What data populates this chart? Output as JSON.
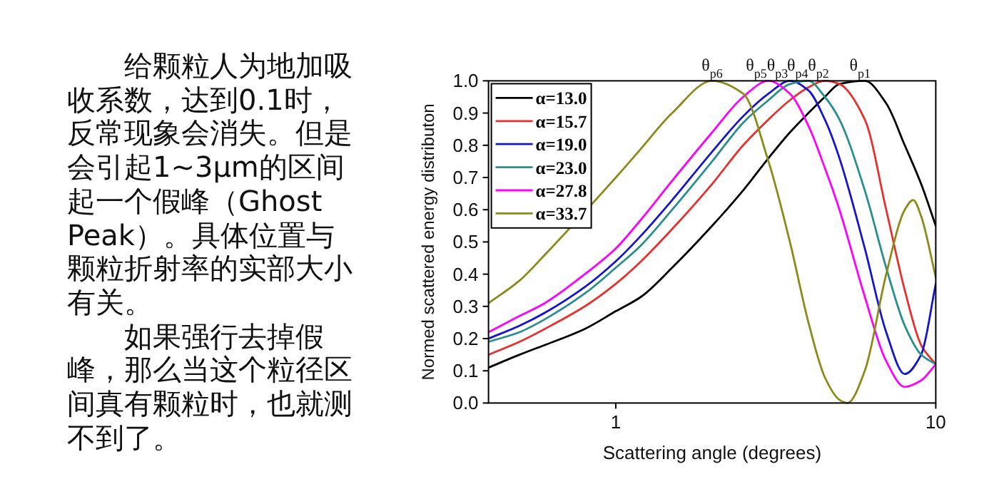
{
  "chart_data": {
    "type": "line",
    "xlabel": "Scattering angle (degrees)",
    "ylabel": "Normed scattered energy distributon",
    "annotations": [
      "给颗粒人为地加吸收系数，达到0.1时，反常现象会消失。但是会引起1~3μm的区间起一个假峰（Ghost Peak）。具体位置与颗粒折射率的实部大小有关。",
      "如果强行去掉假峰，那么当这个粒径区间真有颗粒时，也就测不到了。",
      {
        "text": "θ$_{p6}$",
        "x": 2.0,
        "y": 1.0
      },
      {
        "text": "θ$_{p5}$",
        "x": 2.75,
        "y": 1.0
      },
      {
        "text": "θ$_{p3}$",
        "x": 3.2,
        "y": 1.0
      },
      {
        "text": "θ$_{p4}$",
        "x": 3.7,
        "y": 1.0
      },
      {
        "text": "θ$_{p2}$",
        "x": 4.3,
        "y": 1.0
      },
      {
        "text": "θ$_{p1}$",
        "x": 5.8,
        "y": 1.0
      }
    ],
    "x": [
      0.4,
      0.5,
      0.6,
      0.8,
      1,
      1.2,
      1.5,
      2,
      2.5,
      3,
      3.5,
      4,
      4.5,
      5,
      6,
      7,
      8,
      9,
      10
    ],
    "series": [
      {
        "name": "α=13.0",
        "color": "#000000",
        "values": [
          0.11,
          0.15,
          0.18,
          0.23,
          0.285,
          0.33,
          0.42,
          0.55,
          0.66,
          0.76,
          0.84,
          0.9,
          0.95,
          0.99,
          1.0,
          0.93,
          0.8,
          0.68,
          0.55
        ]
      },
      {
        "name": "α=15.7",
        "color": "#e8302e",
        "values": [
          0.15,
          0.19,
          0.23,
          0.3,
          0.37,
          0.44,
          0.54,
          0.68,
          0.8,
          0.88,
          0.94,
          0.98,
          1.0,
          0.99,
          0.88,
          0.6,
          0.35,
          0.18,
          0.12
        ]
      },
      {
        "name": "α=19.0",
        "color": "#1515d0",
        "values": [
          0.2,
          0.24,
          0.28,
          0.36,
          0.44,
          0.52,
          0.63,
          0.78,
          0.89,
          0.96,
          1.0,
          0.97,
          0.88,
          0.76,
          0.48,
          0.22,
          0.09,
          0.15,
          0.37
        ]
      },
      {
        "name": "α=23.0",
        "color": "#2a8f8f",
        "values": [
          0.19,
          0.22,
          0.26,
          0.34,
          0.42,
          0.49,
          0.6,
          0.75,
          0.87,
          0.94,
          0.99,
          1.0,
          0.95,
          0.88,
          0.66,
          0.42,
          0.24,
          0.15,
          0.12
        ]
      },
      {
        "name": "α=27.8",
        "color": "#ff00ff",
        "values": [
          0.22,
          0.27,
          0.31,
          0.4,
          0.48,
          0.57,
          0.69,
          0.84,
          0.95,
          1.0,
          0.96,
          0.86,
          0.73,
          0.6,
          0.33,
          0.13,
          0.05,
          0.07,
          0.12
        ]
      },
      {
        "name": "α=33.7",
        "color": "#8b8b1a",
        "x": [
          0.4,
          0.5,
          0.6,
          1,
          1.2,
          1.5,
          2,
          2.5,
          3,
          3.5,
          4,
          4.5,
          5,
          5.3,
          6,
          7,
          8,
          8.5,
          9,
          10
        ],
        "values": [
          0.31,
          0.38,
          0.46,
          0.7,
          0.79,
          0.9,
          1.0,
          0.96,
          0.75,
          0.5,
          0.25,
          0.08,
          0.01,
          0.0,
          0.1,
          0.4,
          0.6,
          0.63,
          0.58,
          0.39
        ]
      }
    ],
    "log": "x",
    "xlim": [
      0.4,
      10
    ],
    "xticks": [
      1,
      10
    ],
    "ylim": [
      0,
      1
    ],
    "yticks": [
      {
        "value": 0,
        "label": "0.0"
      },
      {
        "value": 0.1,
        "label": "0.1"
      },
      {
        "value": 0.2,
        "label": "0.2"
      },
      {
        "value": 0.3,
        "label": "0.3"
      },
      {
        "value": 0.4,
        "label": "0.4"
      },
      {
        "value": 0.5,
        "label": "0.5"
      },
      {
        "value": 0.6,
        "label": "0.6"
      },
      {
        "value": 0.7,
        "label": "0.7"
      },
      {
        "value": 0.8,
        "label": "0.8"
      },
      {
        "value": 0.9,
        "label": "0.9"
      },
      {
        "value": 1,
        "label": "1.0"
      }
    ],
    "legend": "top left",
    "grid": false
  }
}
